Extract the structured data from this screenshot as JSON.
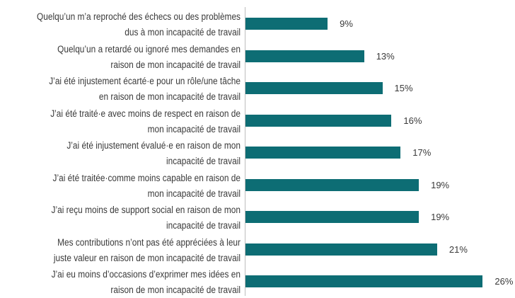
{
  "chart_data": {
    "type": "bar",
    "orientation": "horizontal",
    "categories": [
      "Quelqu’un m’a reproché des échecs ou des problèmes dus à mon incapacité de travail",
      "Quelqu’un a retardé ou ignoré mes demandes en raison de mon incapacité de travail",
      "J’ai été injustement écarté·e pour un rôle/une tâche en raison de mon incapacité de travail",
      "J’ai été traité·e avec moins de respect en raison de mon incapacité de travail",
      "J’ai été injustement évalué·e en raison de mon incapacité de travail",
      "J’ai été traitée·comme moins capable en raison de mon incapacité de travail",
      "J’ai reçu moins de support social en raison de mon incapacité de travail",
      "Mes contributions n’ont pas été appréciées à leur juste valeur en raison de mon incapacité de travail",
      "J’ai eu moins d’occasions d’exprimer mes idées en raison de mon incapacité de travail"
    ],
    "label_lines": [
      [
        "Quelqu’un m’a reproché des échecs ou des problèmes",
        "dus à mon incapacité de travail"
      ],
      [
        "Quelqu’un a retardé ou ignoré mes demandes en",
        "raison de mon incapacité de travail"
      ],
      [
        "J’ai été injustement écarté·e pour un rôle/une tâche",
        "en raison de mon incapacité de travail"
      ],
      [
        "J’ai été traité·e avec moins de respect en raison de",
        "mon incapacité de travail"
      ],
      [
        "J’ai été injustement évalué·e en raison de mon",
        "incapacité de travail"
      ],
      [
        "J’ai été traitée·comme moins capable en raison de",
        "mon incapacité de travail"
      ],
      [
        "J’ai reçu moins de support social en raison de mon",
        "incapacité de travail"
      ],
      [
        "Mes contributions n’ont pas été appréciées à leur",
        "juste valeur en raison de mon incapacité de travail"
      ],
      [
        "J’ai eu moins d’occasions d’exprimer mes idées en",
        "raison de mon incapacité de travail"
      ]
    ],
    "values": [
      9,
      13,
      15,
      16,
      17,
      19,
      19,
      21,
      26
    ],
    "value_labels": [
      "9%",
      "13%",
      "15%",
      "16%",
      "17%",
      "19%",
      "19%",
      "21%",
      "26%"
    ],
    "unit": "%",
    "xlim": [
      0,
      27
    ],
    "bar_color": "#0d6d74",
    "grid": false,
    "legend": "none",
    "title": "",
    "xlabel": "",
    "ylabel": ""
  }
}
